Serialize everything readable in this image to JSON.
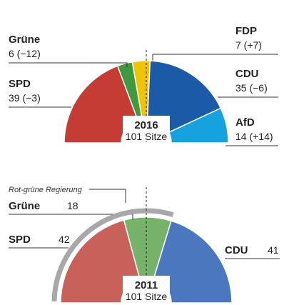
{
  "chart_data": [
    {
      "type": "parliament",
      "center_label": "2016",
      "subtitle": "101 Sitze",
      "categories": [
        "SPD",
        "Grüne",
        "FDP",
        "CDU",
        "AfD"
      ],
      "values": [
        39,
        6,
        7,
        35,
        14
      ],
      "value_labels": [
        "39 (−3)",
        "6 (−12)",
        "7 (+7)",
        "35 (−6)",
        "14 (+14)"
      ],
      "colors": [
        "#c43c33",
        "#3f9a3d",
        "#f0c400",
        "#1b5aa6",
        "#16a2df"
      ]
    },
    {
      "type": "parliament",
      "center_label": "2011",
      "subtitle": "101 Sitze",
      "annotation": "Rot-grüne Regierung",
      "categories": [
        "SPD",
        "Grüne",
        "CDU"
      ],
      "values": [
        42,
        18,
        41
      ],
      "colors": [
        "#c8615a",
        "#77b26b",
        "#4a77be"
      ],
      "coalition": [
        "SPD",
        "Grüne"
      ]
    }
  ]
}
